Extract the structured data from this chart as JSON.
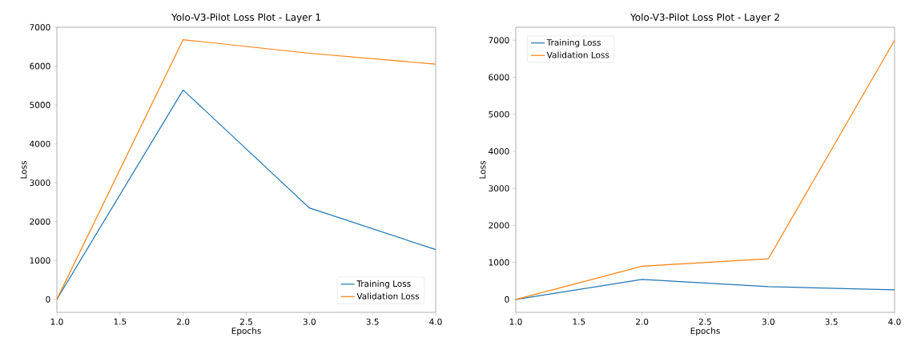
{
  "chart_data": [
    {
      "type": "line",
      "title": "Yolo-V3-Pilot Loss Plot - Layer 1",
      "xlabel": "Epochs",
      "ylabel": "Loss",
      "legend": "bottom right",
      "x": [
        1,
        2,
        3,
        4
      ],
      "xlim": [
        1,
        4
      ],
      "ylim": [
        -335,
        7000
      ],
      "xticks": [
        {
          "value": 1,
          "label": "1.0"
        },
        {
          "value": 1.5,
          "label": "1.5"
        },
        {
          "value": 2,
          "label": "2.0"
        },
        {
          "value": 2.5,
          "label": "2.5"
        },
        {
          "value": 3,
          "label": "3.0"
        },
        {
          "value": 3.5,
          "label": "3.5"
        },
        {
          "value": 4,
          "label": "4.0"
        }
      ],
      "yticks": [
        0,
        1000,
        2000,
        3000,
        4000,
        5000,
        6000,
        7000
      ],
      "series": [
        {
          "name": "Training Loss",
          "color": "#1f77b4",
          "values": [
            0,
            5385,
            2350,
            1280
          ]
        },
        {
          "name": "Validation Loss",
          "color": "#ff7f0e",
          "values": [
            0,
            6680,
            6330,
            6050
          ]
        }
      ]
    },
    {
      "type": "line",
      "title": "Yolo-V3-Pilot Loss Plot - Layer 2",
      "xlabel": "Epochs",
      "ylabel": "Loss",
      "legend": "top left",
      "x": [
        1,
        2,
        3,
        4
      ],
      "xlim": [
        1,
        4
      ],
      "ylim": [
        -350,
        7350
      ],
      "xticks": [
        {
          "value": 1,
          "label": "1.0"
        },
        {
          "value": 1.5,
          "label": "1.5"
        },
        {
          "value": 2,
          "label": "2.0"
        },
        {
          "value": 2.5,
          "label": "2.5"
        },
        {
          "value": 3,
          "label": "3.0"
        },
        {
          "value": 3.5,
          "label": "3.5"
        },
        {
          "value": 4,
          "label": "4.0"
        }
      ],
      "yticks": [
        0,
        1000,
        2000,
        3000,
        4000,
        5000,
        6000,
        7000
      ],
      "series": [
        {
          "name": "Training Loss",
          "color": "#1f77b4",
          "values": [
            0,
            540,
            345,
            260
          ]
        },
        {
          "name": "Validation Loss",
          "color": "#ff7f0e",
          "values": [
            0,
            895,
            1095,
            7000
          ]
        }
      ]
    }
  ]
}
